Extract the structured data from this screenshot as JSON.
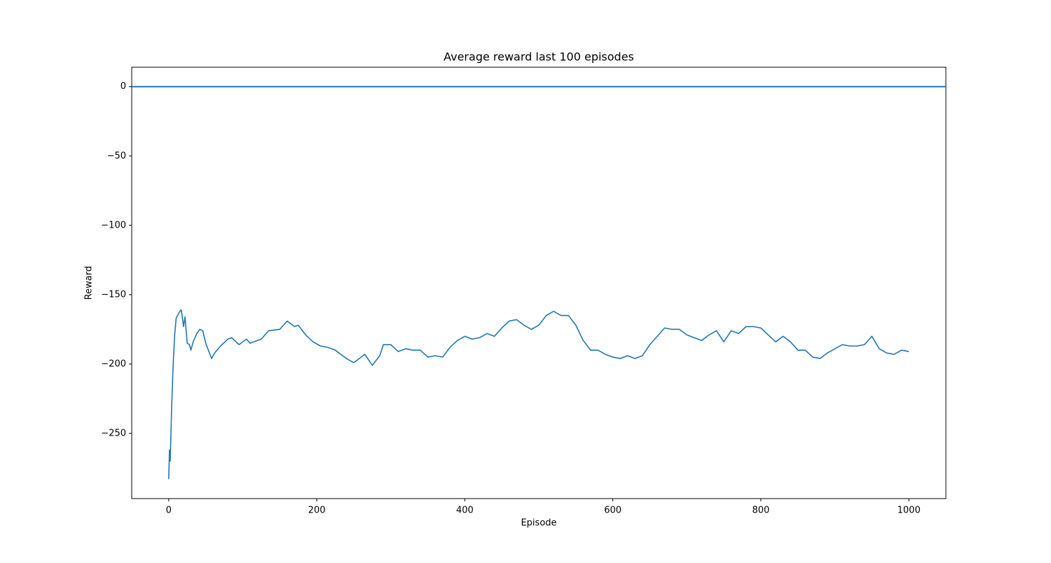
{
  "chart_data": {
    "type": "line",
    "title": "Average reward last 100 episodes",
    "xlabel": "Episode",
    "ylabel": "Reward",
    "x": [
      0,
      1,
      2,
      4,
      6,
      8,
      10,
      12,
      15,
      17,
      20,
      22,
      25,
      28,
      30,
      33,
      38,
      42,
      46,
      50,
      55,
      58,
      62,
      70,
      80,
      85,
      95,
      105,
      110,
      125,
      135,
      150,
      160,
      170,
      175,
      185,
      195,
      205,
      215,
      225,
      240,
      250,
      260,
      265,
      275,
      285,
      290,
      300,
      310,
      320,
      330,
      340,
      350,
      360,
      370,
      380,
      390,
      400,
      410,
      420,
      430,
      440,
      450,
      460,
      470,
      480,
      490,
      500,
      510,
      520,
      530,
      540,
      550,
      560,
      570,
      580,
      590,
      600,
      610,
      620,
      630,
      640,
      650,
      660,
      670,
      680,
      690,
      700,
      710,
      720,
      730,
      740,
      750,
      760,
      770,
      780,
      790,
      800,
      810,
      820,
      830,
      840,
      850,
      860,
      870,
      880,
      890,
      900,
      910,
      920,
      930,
      940,
      950,
      960,
      970,
      980,
      990,
      1000
    ],
    "series": [
      {
        "color": "#1f77b4",
        "values": [
          -283,
          -262,
          -270,
          -230,
          -200,
          -179,
          -167,
          -165,
          -162,
          -161,
          -173,
          -166,
          -185,
          -186,
          -190,
          -184,
          -178,
          -175,
          -176,
          -185,
          -192,
          -196,
          -192,
          -187,
          -182,
          -181,
          -186,
          -182,
          -185,
          -182,
          -176,
          -175,
          -169,
          -173,
          -172,
          -179,
          -184,
          -187,
          -188,
          -190,
          -196,
          -199,
          -195,
          -193,
          -201,
          -194,
          -186,
          -186,
          -191,
          -189,
          -190,
          -190,
          -195,
          -194,
          -195,
          -188,
          -183,
          -180,
          -182,
          -181,
          -178,
          -180,
          -174,
          -169,
          -168,
          -172,
          -175,
          -172,
          -165,
          -162,
          -165,
          -165,
          -172,
          -183,
          -190,
          -190,
          -193,
          -195,
          -196,
          -194,
          -196,
          -194,
          -186,
          -180,
          -174,
          -175,
          -175,
          -179,
          -181,
          -183,
          -179,
          -176,
          -184,
          -176,
          -178,
          -173,
          -173,
          -174,
          -179,
          -184,
          -180,
          -184,
          -190,
          -190,
          -195,
          -196,
          -192,
          -189,
          -186,
          -187,
          -187,
          -186,
          -180,
          -189,
          -192,
          -193,
          -190,
          -191
        ]
      }
    ],
    "hlines": [
      0
    ],
    "xlim": [
      -50,
      1050
    ],
    "ylim": [
      -297,
      14
    ],
    "xticks": [
      0,
      200,
      400,
      600,
      800,
      1000
    ],
    "yticks": [
      0,
      {
        "value": -50,
        "label": "−50"
      },
      {
        "value": -100,
        "label": "−100"
      },
      {
        "value": -150,
        "label": "−150"
      },
      {
        "value": -200,
        "label": "−200"
      },
      {
        "value": -250,
        "label": "−250"
      }
    ]
  }
}
